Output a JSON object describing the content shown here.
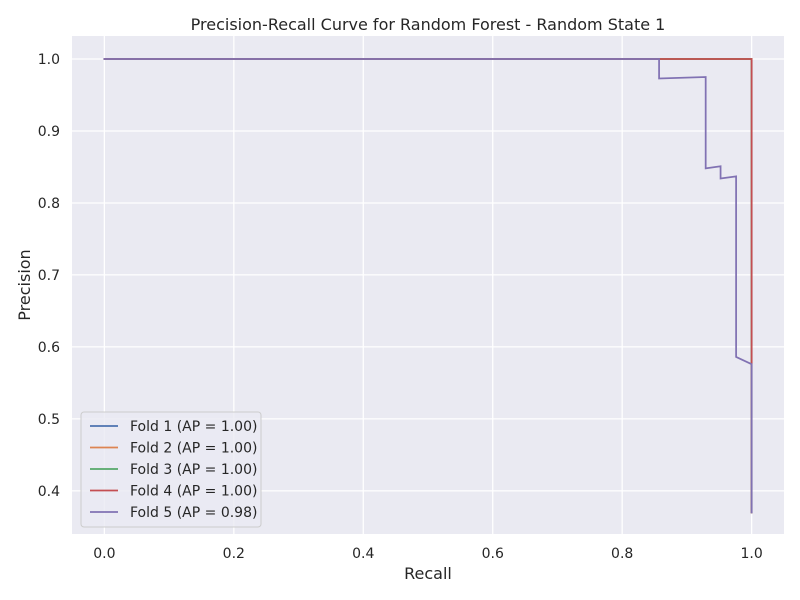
{
  "chart_data": {
    "type": "line",
    "title": "Precision-Recall Curve for Random Forest - Random State 1",
    "xlabel": "Recall",
    "ylabel": "Precision",
    "xlim": [
      -0.05,
      1.05
    ],
    "ylim": [
      0.34,
      1.032
    ],
    "xticks": [
      0.0,
      0.2,
      0.4,
      0.6,
      0.8,
      1.0
    ],
    "yticks": [
      0.4,
      0.5,
      0.6,
      0.7,
      0.8,
      0.9,
      1.0
    ],
    "xtick_labels": [
      "0.0",
      "0.2",
      "0.4",
      "0.6",
      "0.8",
      "1.0"
    ],
    "ytick_labels": [
      "0.4",
      "0.5",
      "0.6",
      "0.7",
      "0.8",
      "0.9",
      "1.0"
    ],
    "grid": true,
    "legend_position": "lower-left",
    "series": [
      {
        "name": "Fold 1 (AP = 1.00)",
        "color": "#4c72b0",
        "points": [
          [
            0.0,
            1.0
          ],
          [
            1.0,
            1.0
          ],
          [
            1.0,
            0.37
          ]
        ]
      },
      {
        "name": "Fold 2 (AP = 1.00)",
        "color": "#dd8452",
        "points": [
          [
            0.0,
            1.0
          ],
          [
            1.0,
            1.0
          ],
          [
            1.0,
            0.37
          ]
        ]
      },
      {
        "name": "Fold 3 (AP = 1.00)",
        "color": "#55a868",
        "points": [
          [
            0.0,
            1.0
          ],
          [
            1.0,
            1.0
          ],
          [
            1.0,
            0.37
          ]
        ]
      },
      {
        "name": "Fold 4 (AP = 1.00)",
        "color": "#c44e52",
        "points": [
          [
            0.0,
            1.0
          ],
          [
            1.0,
            1.0
          ],
          [
            1.0,
            0.37
          ]
        ]
      },
      {
        "name": "Fold 5 (AP = 0.98)",
        "color": "#8172b3",
        "points": [
          [
            0.0,
            1.0
          ],
          [
            0.857,
            1.0
          ],
          [
            0.857,
            0.973
          ],
          [
            0.929,
            0.975
          ],
          [
            0.929,
            0.848
          ],
          [
            0.952,
            0.851
          ],
          [
            0.952,
            0.834
          ],
          [
            0.976,
            0.837
          ],
          [
            0.976,
            0.586
          ],
          [
            1.0,
            0.576
          ],
          [
            1.0,
            0.37
          ]
        ]
      }
    ]
  }
}
